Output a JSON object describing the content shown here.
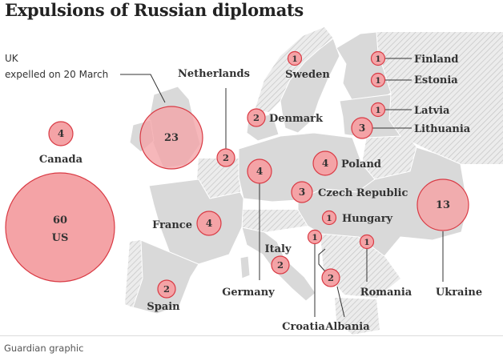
{
  "title": "Expulsions of Russian diplomats",
  "credit": "Guardian graphic",
  "uk_note": {
    "line1": "UK",
    "line2": "expelled on 20 March"
  },
  "colors": {
    "bubble_fill": "#f4a3a6",
    "bubble_stroke": "#d93a44",
    "land": "#dadada",
    "hatch": "#c4c4c4",
    "leader": "#333333"
  },
  "countries": [
    {
      "id": "us",
      "name": "US",
      "count": 60
    },
    {
      "id": "uk",
      "name": "UK",
      "count": 23
    },
    {
      "id": "ukraine",
      "name": "Ukraine",
      "count": 13
    },
    {
      "id": "canada",
      "name": "Canada",
      "count": 4
    },
    {
      "id": "france",
      "name": "France",
      "count": 4
    },
    {
      "id": "germany",
      "name": "Germany",
      "count": 4
    },
    {
      "id": "poland",
      "name": "Poland",
      "count": 4
    },
    {
      "id": "czech-republic",
      "name": "Czech Republic",
      "count": 3
    },
    {
      "id": "lithuania",
      "name": "Lithuania",
      "count": 3
    },
    {
      "id": "netherlands",
      "name": "Netherlands",
      "count": 2
    },
    {
      "id": "denmark",
      "name": "Denmark",
      "count": 2
    },
    {
      "id": "italy",
      "name": "Italy",
      "count": 2
    },
    {
      "id": "spain",
      "name": "Spain",
      "count": 2
    },
    {
      "id": "albania",
      "name": "Albania",
      "count": 2
    },
    {
      "id": "finland",
      "name": "Finland",
      "count": 1
    },
    {
      "id": "estonia",
      "name": "Estonia",
      "count": 1
    },
    {
      "id": "latvia",
      "name": "Latvia",
      "count": 1
    },
    {
      "id": "sweden",
      "name": "Sweden",
      "count": 1
    },
    {
      "id": "hungary",
      "name": "Hungary",
      "count": 1
    },
    {
      "id": "croatia",
      "name": "Croatia",
      "count": 1
    },
    {
      "id": "romania",
      "name": "Romania",
      "count": 1
    }
  ]
}
